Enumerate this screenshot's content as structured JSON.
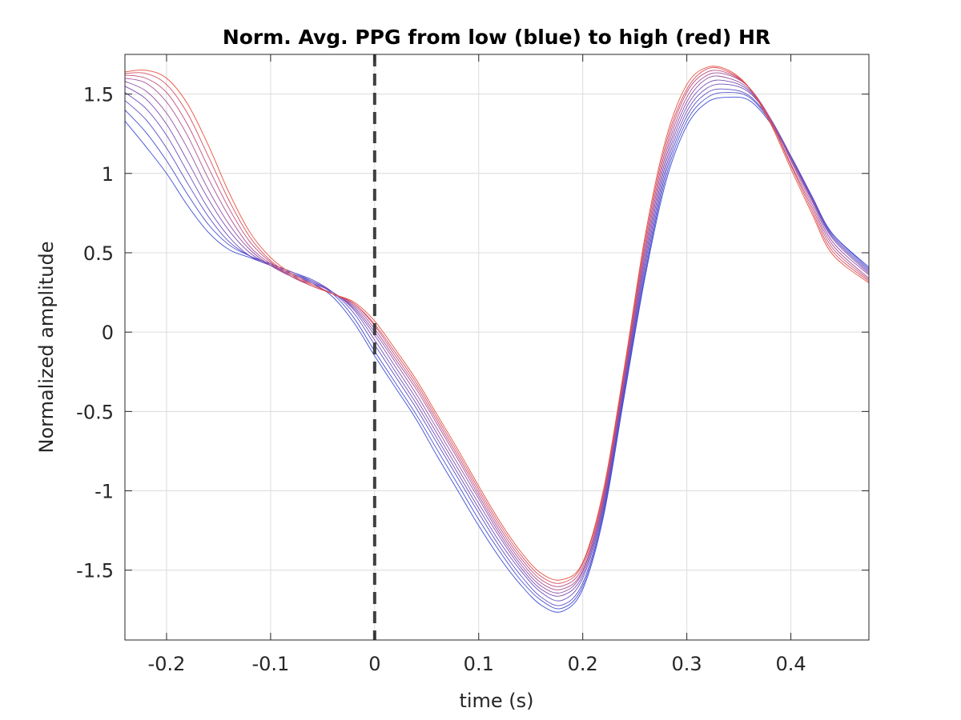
{
  "chart_data": {
    "type": "line",
    "title": "Norm. Avg. PPG from low (blue) to high (red) HR",
    "xlabel": "time (s)",
    "ylabel": "Normalized amplitude",
    "xlim": [
      -0.24,
      0.475
    ],
    "ylim": [
      -1.94,
      1.75
    ],
    "xticks": [
      -0.2,
      -0.1,
      0,
      0.1,
      0.2,
      0.3,
      0.4
    ],
    "xtick_labels": [
      "-0.2",
      "-0.1",
      "0",
      "0.1",
      "0.2",
      "0.3",
      "0.4"
    ],
    "yticks": [
      -1.5,
      -1,
      -0.5,
      0,
      0.5,
      1,
      1.5
    ],
    "ytick_labels": [
      "-1.5",
      "-1",
      "-0.5",
      "0",
      "0.5",
      "1",
      "1.5"
    ],
    "grid": true,
    "reference_line": {
      "x": 0,
      "style": "dashed",
      "color": "#404040"
    },
    "color_low": "#3d4fd8",
    "color_high": "#e8503a",
    "series": [
      {
        "color": "#3d4fd8",
        "x": [
          -0.24,
          -0.22,
          -0.2,
          -0.18,
          -0.16,
          -0.14,
          -0.12,
          -0.1,
          -0.08,
          -0.06,
          -0.04,
          -0.02,
          0,
          0.02,
          0.04,
          0.06,
          0.08,
          0.1,
          0.12,
          0.14,
          0.16,
          0.18,
          0.2,
          0.22,
          0.24,
          0.26,
          0.28,
          0.3,
          0.32,
          0.34,
          0.36,
          0.38,
          0.4,
          0.42,
          0.44,
          0.475
        ],
        "y": [
          1.33,
          1.17,
          1.0,
          0.8,
          0.63,
          0.52,
          0.47,
          0.42,
          0.37,
          0.31,
          0.22,
          0.06,
          -0.15,
          -0.35,
          -0.55,
          -0.78,
          -1.0,
          -1.22,
          -1.42,
          -1.59,
          -1.72,
          -1.76,
          -1.62,
          -1.16,
          -0.4,
          0.35,
          0.95,
          1.3,
          1.45,
          1.48,
          1.46,
          1.32,
          1.1,
          0.85,
          0.62,
          0.41
        ]
      },
      {
        "color": "#4a4fd0",
        "x": [
          -0.24,
          -0.22,
          -0.2,
          -0.18,
          -0.16,
          -0.14,
          -0.12,
          -0.1,
          -0.08,
          -0.06,
          -0.04,
          -0.02,
          0,
          0.02,
          0.04,
          0.06,
          0.08,
          0.1,
          0.12,
          0.14,
          0.16,
          0.18,
          0.2,
          0.22,
          0.24,
          0.26,
          0.28,
          0.3,
          0.32,
          0.34,
          0.36,
          0.38,
          0.4,
          0.42,
          0.44,
          0.475
        ],
        "y": [
          1.4,
          1.26,
          1.08,
          0.87,
          0.68,
          0.55,
          0.48,
          0.43,
          0.38,
          0.32,
          0.24,
          0.09,
          -0.12,
          -0.32,
          -0.52,
          -0.74,
          -0.96,
          -1.18,
          -1.38,
          -1.56,
          -1.69,
          -1.74,
          -1.6,
          -1.14,
          -0.38,
          0.37,
          0.98,
          1.33,
          1.48,
          1.51,
          1.48,
          1.33,
          1.11,
          0.86,
          0.62,
          0.4
        ]
      },
      {
        "color": "#5a4fc8",
        "x": [
          -0.24,
          -0.22,
          -0.2,
          -0.18,
          -0.16,
          -0.14,
          -0.12,
          -0.1,
          -0.08,
          -0.06,
          -0.04,
          -0.02,
          0,
          0.02,
          0.04,
          0.06,
          0.08,
          0.1,
          0.12,
          0.14,
          0.16,
          0.18,
          0.2,
          0.22,
          0.24,
          0.26,
          0.28,
          0.3,
          0.32,
          0.34,
          0.36,
          0.38,
          0.4,
          0.42,
          0.44,
          0.475
        ],
        "y": [
          1.46,
          1.34,
          1.16,
          0.94,
          0.73,
          0.57,
          0.48,
          0.43,
          0.38,
          0.33,
          0.25,
          0.12,
          -0.08,
          -0.28,
          -0.48,
          -0.7,
          -0.92,
          -1.14,
          -1.35,
          -1.53,
          -1.67,
          -1.72,
          -1.58,
          -1.12,
          -0.36,
          0.4,
          1.01,
          1.36,
          1.51,
          1.53,
          1.49,
          1.34,
          1.11,
          0.86,
          0.61,
          0.39
        ]
      },
      {
        "color": "#6c4fbf",
        "x": [
          -0.24,
          -0.22,
          -0.2,
          -0.18,
          -0.16,
          -0.14,
          -0.12,
          -0.1,
          -0.08,
          -0.06,
          -0.04,
          -0.02,
          0,
          0.02,
          0.04,
          0.06,
          0.08,
          0.1,
          0.12,
          0.14,
          0.16,
          0.18,
          0.2,
          0.22,
          0.24,
          0.26,
          0.28,
          0.3,
          0.32,
          0.34,
          0.36,
          0.38,
          0.4,
          0.42,
          0.44,
          0.475
        ],
        "y": [
          1.51,
          1.41,
          1.24,
          1.01,
          0.78,
          0.6,
          0.48,
          0.42,
          0.37,
          0.32,
          0.25,
          0.14,
          -0.05,
          -0.25,
          -0.45,
          -0.67,
          -0.89,
          -1.11,
          -1.32,
          -1.5,
          -1.64,
          -1.69,
          -1.55,
          -1.1,
          -0.34,
          0.43,
          1.04,
          1.39,
          1.54,
          1.56,
          1.51,
          1.35,
          1.11,
          0.85,
          0.6,
          0.38
        ]
      },
      {
        "color": "#7e4fb4",
        "x": [
          -0.24,
          -0.22,
          -0.2,
          -0.18,
          -0.16,
          -0.14,
          -0.12,
          -0.1,
          -0.08,
          -0.06,
          -0.04,
          -0.02,
          0,
          0.02,
          0.04,
          0.06,
          0.08,
          0.1,
          0.12,
          0.14,
          0.16,
          0.18,
          0.2,
          0.22,
          0.24,
          0.26,
          0.28,
          0.3,
          0.32,
          0.34,
          0.36,
          0.38,
          0.4,
          0.42,
          0.44,
          0.475
        ],
        "y": [
          1.55,
          1.47,
          1.31,
          1.08,
          0.84,
          0.64,
          0.5,
          0.42,
          0.36,
          0.31,
          0.25,
          0.15,
          -0.02,
          -0.22,
          -0.42,
          -0.64,
          -0.86,
          -1.08,
          -1.29,
          -1.48,
          -1.62,
          -1.66,
          -1.53,
          -1.08,
          -0.32,
          0.46,
          1.07,
          1.42,
          1.57,
          1.58,
          1.52,
          1.35,
          1.1,
          0.84,
          0.59,
          0.37
        ]
      },
      {
        "color": "#924fa6",
        "x": [
          -0.24,
          -0.22,
          -0.2,
          -0.18,
          -0.16,
          -0.14,
          -0.12,
          -0.1,
          -0.08,
          -0.06,
          -0.04,
          -0.02,
          0,
          0.02,
          0.04,
          0.06,
          0.08,
          0.1,
          0.12,
          0.14,
          0.16,
          0.18,
          0.2,
          0.22,
          0.24,
          0.26,
          0.28,
          0.3,
          0.32,
          0.34,
          0.36,
          0.38,
          0.4,
          0.42,
          0.44,
          0.475
        ],
        "y": [
          1.58,
          1.52,
          1.38,
          1.16,
          0.9,
          0.68,
          0.52,
          0.42,
          0.35,
          0.3,
          0.24,
          0.16,
          0.0,
          -0.19,
          -0.39,
          -0.61,
          -0.83,
          -1.05,
          -1.27,
          -1.46,
          -1.6,
          -1.64,
          -1.51,
          -1.06,
          -0.3,
          0.49,
          1.1,
          1.45,
          1.6,
          1.6,
          1.53,
          1.35,
          1.09,
          0.83,
          0.57,
          0.36
        ]
      },
      {
        "color": "#a84f94",
        "x": [
          -0.24,
          -0.22,
          -0.2,
          -0.18,
          -0.16,
          -0.14,
          -0.12,
          -0.1,
          -0.08,
          -0.06,
          -0.04,
          -0.02,
          0,
          0.02,
          0.04,
          0.06,
          0.08,
          0.1,
          0.12,
          0.14,
          0.16,
          0.18,
          0.2,
          0.22,
          0.24,
          0.26,
          0.28,
          0.3,
          0.32,
          0.34,
          0.36,
          0.38,
          0.4,
          0.42,
          0.44,
          0.475
        ],
        "y": [
          1.6,
          1.57,
          1.45,
          1.24,
          0.97,
          0.73,
          0.54,
          0.43,
          0.35,
          0.29,
          0.24,
          0.17,
          0.02,
          -0.17,
          -0.36,
          -0.58,
          -0.8,
          -1.03,
          -1.25,
          -1.44,
          -1.58,
          -1.62,
          -1.5,
          -1.05,
          -0.28,
          0.52,
          1.13,
          1.48,
          1.62,
          1.62,
          1.54,
          1.35,
          1.08,
          0.81,
          0.55,
          0.34
        ]
      },
      {
        "color": "#c04f7c",
        "x": [
          -0.24,
          -0.22,
          -0.2,
          -0.18,
          -0.16,
          -0.14,
          -0.12,
          -0.1,
          -0.08,
          -0.06,
          -0.04,
          -0.02,
          0,
          0.02,
          0.04,
          0.06,
          0.08,
          0.1,
          0.12,
          0.14,
          0.16,
          0.18,
          0.2,
          0.22,
          0.24,
          0.26,
          0.28,
          0.3,
          0.32,
          0.34,
          0.36,
          0.38,
          0.4,
          0.42,
          0.44,
          0.475
        ],
        "y": [
          1.62,
          1.6,
          1.51,
          1.31,
          1.04,
          0.78,
          0.57,
          0.44,
          0.35,
          0.29,
          0.24,
          0.18,
          0.04,
          -0.15,
          -0.34,
          -0.56,
          -0.78,
          -1.01,
          -1.23,
          -1.42,
          -1.56,
          -1.6,
          -1.48,
          -1.03,
          -0.26,
          0.55,
          1.16,
          1.51,
          1.64,
          1.63,
          1.54,
          1.34,
          1.06,
          0.79,
          0.53,
          0.33
        ]
      },
      {
        "color": "#d54f62",
        "x": [
          -0.24,
          -0.22,
          -0.2,
          -0.18,
          -0.16,
          -0.14,
          -0.12,
          -0.1,
          -0.08,
          -0.06,
          -0.04,
          -0.02,
          0,
          0.02,
          0.04,
          0.06,
          0.08,
          0.1,
          0.12,
          0.14,
          0.16,
          0.18,
          0.2,
          0.22,
          0.24,
          0.26,
          0.28,
          0.3,
          0.32,
          0.34,
          0.36,
          0.38,
          0.4,
          0.42,
          0.44,
          0.475
        ],
        "y": [
          1.63,
          1.63,
          1.56,
          1.38,
          1.11,
          0.83,
          0.6,
          0.45,
          0.36,
          0.29,
          0.24,
          0.18,
          0.05,
          -0.13,
          -0.32,
          -0.54,
          -0.76,
          -0.99,
          -1.21,
          -1.4,
          -1.54,
          -1.58,
          -1.46,
          -1.01,
          -0.24,
          0.58,
          1.19,
          1.53,
          1.66,
          1.64,
          1.54,
          1.33,
          1.05,
          0.77,
          0.51,
          0.32
        ]
      },
      {
        "color": "#e8503a",
        "x": [
          -0.24,
          -0.22,
          -0.2,
          -0.18,
          -0.16,
          -0.14,
          -0.12,
          -0.1,
          -0.08,
          -0.06,
          -0.04,
          -0.02,
          0,
          0.02,
          0.04,
          0.06,
          0.08,
          0.1,
          0.12,
          0.14,
          0.16,
          0.18,
          0.2,
          0.22,
          0.24,
          0.26,
          0.28,
          0.3,
          0.32,
          0.34,
          0.36,
          0.38,
          0.4,
          0.42,
          0.44,
          0.475
        ],
        "y": [
          1.64,
          1.65,
          1.6,
          1.44,
          1.18,
          0.88,
          0.63,
          0.47,
          0.37,
          0.3,
          0.24,
          0.19,
          0.07,
          -0.11,
          -0.3,
          -0.52,
          -0.74,
          -0.97,
          -1.19,
          -1.38,
          -1.52,
          -1.56,
          -1.45,
          -0.99,
          -0.22,
          0.61,
          1.22,
          1.56,
          1.67,
          1.65,
          1.54,
          1.32,
          1.03,
          0.75,
          0.49,
          0.31
        ]
      }
    ]
  }
}
